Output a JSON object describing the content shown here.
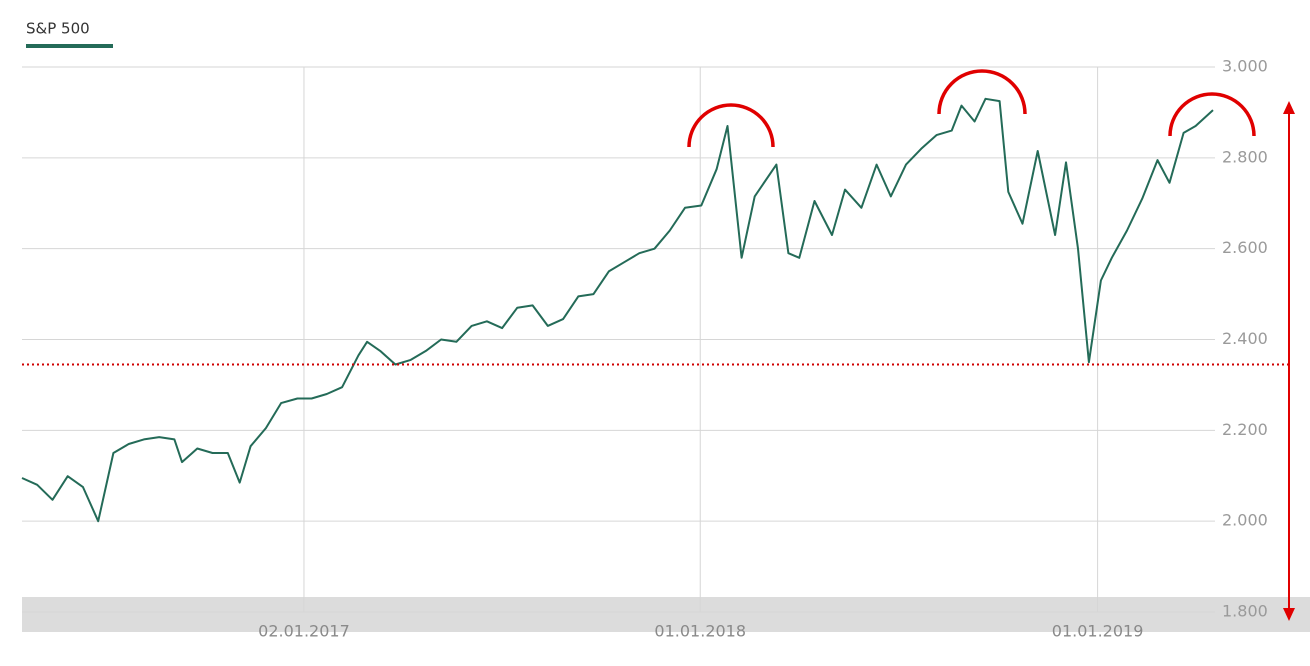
{
  "chart_data": {
    "type": "line",
    "legend_title": "S&P 500",
    "x": [
      "18.04.2016",
      "02.05.2016",
      "16.05.2016",
      "30.05.2016",
      "13.06.2016",
      "27.06.2016",
      "11.07.2016",
      "25.07.2016",
      "08.08.2016",
      "22.08.2016",
      "05.09.2016",
      "12.09.2016",
      "26.09.2016",
      "10.10.2016",
      "24.10.2016",
      "04.11.2016",
      "14.11.2016",
      "28.11.2016",
      "12.12.2016",
      "27.12.2016",
      "09.01.2017",
      "23.01.2017",
      "06.02.2017",
      "21.02.2017",
      "01.03.2017",
      "13.03.2017",
      "27.03.2017",
      "10.04.2017",
      "24.04.2017",
      "08.05.2017",
      "22.05.2017",
      "05.06.2017",
      "19.06.2017",
      "03.07.2017",
      "17.07.2017",
      "31.07.2017",
      "14.08.2017",
      "28.08.2017",
      "11.09.2017",
      "25.09.2017",
      "09.10.2017",
      "23.10.2017",
      "06.11.2017",
      "20.11.2017",
      "04.12.2017",
      "18.12.2017",
      "02.01.2018",
      "16.01.2018",
      "26.01.2018",
      "08.02.2018",
      "20.02.2018",
      "12.03.2018",
      "23.03.2018",
      "02.04.2018",
      "16.04.2018",
      "02.05.2018",
      "14.05.2018",
      "29.05.2018",
      "12.06.2018",
      "25.06.2018",
      "09.07.2018",
      "23.07.2018",
      "06.08.2018",
      "20.08.2018",
      "29.08.2018",
      "10.09.2018",
      "20.09.2018",
      "03.10.2018",
      "11.10.2018",
      "24.10.2018",
      "07.11.2018",
      "23.11.2018",
      "03.12.2018",
      "14.12.2018",
      "24.12.2018",
      "04.01.2019",
      "14.01.2019",
      "28.01.2019",
      "11.02.2019",
      "25.02.2019",
      "08.03.2019",
      "21.03.2019",
      "01.04.2019",
      "17.04.2019"
    ],
    "series": [
      {
        "name": "S&P 500",
        "color": "#246b58",
        "values": [
          2095,
          2080,
          2047,
          2099,
          2075,
          2000,
          2150,
          2170,
          2180,
          2185,
          2180,
          2130,
          2160,
          2150,
          2150,
          2085,
          2165,
          2205,
          2260,
          2270,
          2270,
          2280,
          2295,
          2365,
          2395,
          2375,
          2345,
          2355,
          2375,
          2400,
          2395,
          2430,
          2440,
          2425,
          2470,
          2475,
          2430,
          2445,
          2495,
          2500,
          2550,
          2570,
          2590,
          2600,
          2640,
          2690,
          2695,
          2775,
          2870,
          2580,
          2715,
          2785,
          2590,
          2580,
          2705,
          2630,
          2730,
          2690,
          2785,
          2715,
          2785,
          2820,
          2850,
          2860,
          2915,
          2880,
          2930,
          2925,
          2725,
          2655,
          2815,
          2630,
          2790,
          2600,
          2350,
          2530,
          2580,
          2640,
          2710,
          2795,
          2745,
          2855,
          2870,
          2905
        ]
      }
    ],
    "xlim": [
      "18.04.2016",
      "17.04.2019"
    ],
    "xticks": [
      "02.01.2017",
      "01.01.2018",
      "01.01.2019"
    ],
    "ylim": [
      1800,
      3000
    ],
    "yticks": [
      {
        "value": 1800,
        "label": "1.800"
      },
      {
        "value": 2000,
        "label": "2.000"
      },
      {
        "value": 2200,
        "label": "2.200"
      },
      {
        "value": 2400,
        "label": "2.400"
      },
      {
        "value": 2600,
        "label": "2.600"
      },
      {
        "value": 2800,
        "label": "2.800"
      },
      {
        "value": 3000,
        "label": "3.000"
      }
    ],
    "grid": true,
    "reference_line": {
      "value": 2345,
      "color": "#d00000"
    }
  }
}
